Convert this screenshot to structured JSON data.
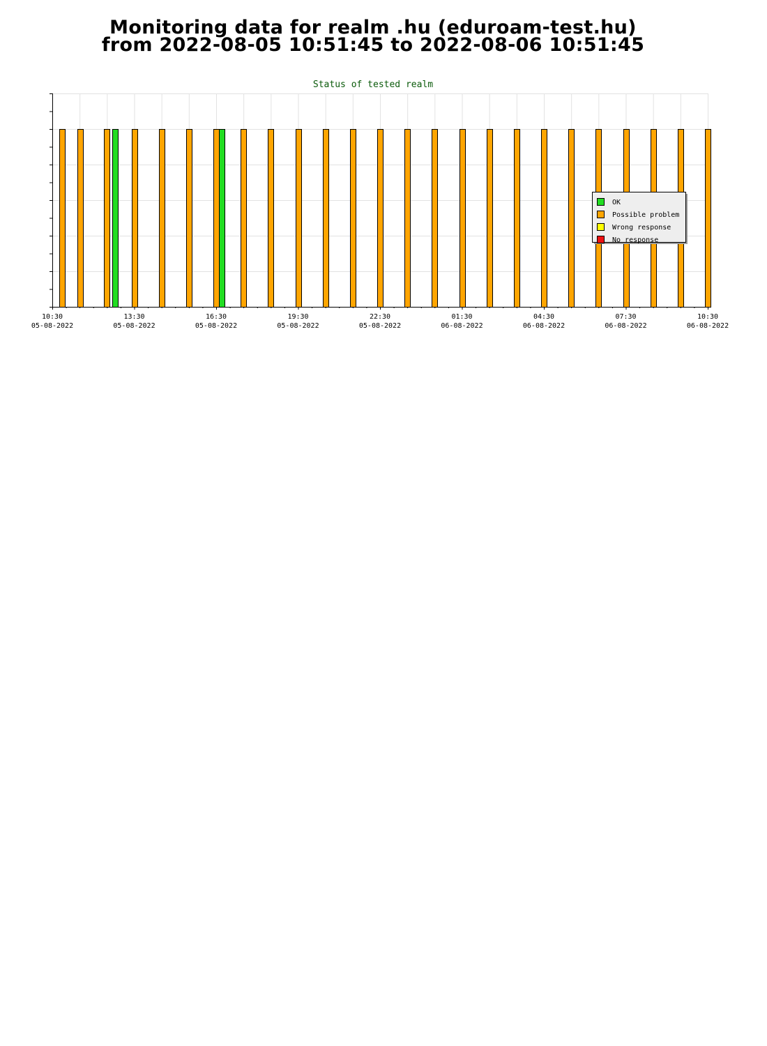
{
  "page": {
    "title_line_1": "Monitoring data for realm .hu  (eduroam-test.hu)",
    "title_line_2": "from 2022-08-05  10:51:45 to 2022-08-06  10:51:45"
  },
  "chart_data": {
    "type": "bar",
    "title": "Status of tested realm",
    "xlabel": "",
    "ylabel": "",
    "x_range": [
      "2022-08-05 10:30",
      "2022-08-06 10:30"
    ],
    "ylim": [
      0,
      6
    ],
    "y_ticks": 12,
    "grid": true,
    "legend_placement": "right",
    "x_ticks": [
      {
        "time": "10:30",
        "date": "05-08-2022",
        "hours": 0
      },
      {
        "time": "13:30",
        "date": "05-08-2022",
        "hours": 3
      },
      {
        "time": "16:30",
        "date": "05-08-2022",
        "hours": 6
      },
      {
        "time": "19:30",
        "date": "05-08-2022",
        "hours": 9
      },
      {
        "time": "22:30",
        "date": "05-08-2022",
        "hours": 12
      },
      {
        "time": "01:30",
        "date": "06-08-2022",
        "hours": 15
      },
      {
        "time": "04:30",
        "date": "06-08-2022",
        "hours": 18
      },
      {
        "time": "07:30",
        "date": "06-08-2022",
        "hours": 21
      },
      {
        "time": "10:30",
        "date": "06-08-2022",
        "hours": 24
      }
    ],
    "series": [
      {
        "name": "OK",
        "color": "#22dd22"
      },
      {
        "name": "Possible problem",
        "color": "#ffa500"
      },
      {
        "name": "Wrong response",
        "color": "#ffff00"
      },
      {
        "name": "No response",
        "color": "#ee1111"
      }
    ],
    "bars": [
      {
        "time": "10:52",
        "status": "Possible problem",
        "value": 5
      },
      {
        "time": "11:32",
        "status": "Possible problem",
        "value": 5
      },
      {
        "time": "12:30",
        "status": "Possible problem",
        "value": 5
      },
      {
        "time": "12:48",
        "status": "OK",
        "value": 5
      },
      {
        "time": "13:30",
        "status": "Possible problem",
        "value": 5
      },
      {
        "time": "14:30",
        "status": "Possible problem",
        "value": 5
      },
      {
        "time": "15:30",
        "status": "Possible problem",
        "value": 5
      },
      {
        "time": "16:30",
        "status": "Possible problem",
        "value": 5
      },
      {
        "time": "16:42",
        "status": "OK",
        "value": 5
      },
      {
        "time": "17:30",
        "status": "Possible problem",
        "value": 5
      },
      {
        "time": "18:30",
        "status": "Possible problem",
        "value": 5
      },
      {
        "time": "19:30",
        "status": "Possible problem",
        "value": 5
      },
      {
        "time": "20:30",
        "status": "Possible problem",
        "value": 5
      },
      {
        "time": "21:30",
        "status": "Possible problem",
        "value": 5
      },
      {
        "time": "22:30",
        "status": "Possible problem",
        "value": 5
      },
      {
        "time": "23:30",
        "status": "Possible problem",
        "value": 5
      },
      {
        "time": "00:30",
        "status": "Possible problem",
        "value": 5
      },
      {
        "time": "01:30",
        "status": "Possible problem",
        "value": 5
      },
      {
        "time": "02:30",
        "status": "Possible problem",
        "value": 5
      },
      {
        "time": "03:30",
        "status": "Possible problem",
        "value": 5
      },
      {
        "time": "04:30",
        "status": "Possible problem",
        "value": 5
      },
      {
        "time": "05:30",
        "status": "Possible problem",
        "value": 5
      },
      {
        "time": "06:30",
        "status": "Possible problem",
        "value": 5
      },
      {
        "time": "07:30",
        "status": "Possible problem",
        "value": 5
      },
      {
        "time": "08:30",
        "status": "Possible problem",
        "value": 5
      },
      {
        "time": "09:30",
        "status": "Possible problem",
        "value": 5
      },
      {
        "time": "10:30",
        "status": "Possible problem",
        "value": 5
      }
    ]
  }
}
